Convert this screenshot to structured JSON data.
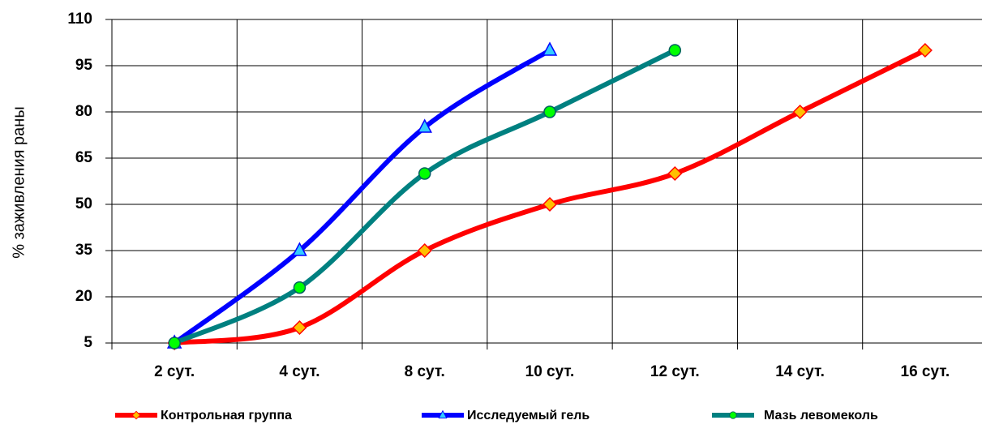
{
  "chart_data": {
    "type": "line",
    "y_label": "% заживления раны",
    "categories": [
      "2 сут.",
      "4 сут.",
      "8 сут.",
      "10 сут.",
      "12 сут.",
      "14 сут.",
      "16 сут."
    ],
    "series": [
      {
        "name": "Контрольная группа",
        "color": "#ff0000",
        "marker": "diamond",
        "marker_color": "#ffc000",
        "values": [
          5,
          10,
          35,
          50,
          60,
          80,
          100
        ]
      },
      {
        "name": "Исследуемый гель",
        "color": "#0000ff",
        "marker": "triangle",
        "marker_color": "#33ccff",
        "values": [
          5,
          35,
          75,
          100,
          null,
          null,
          null
        ]
      },
      {
        "name": "Мазь левомеколь",
        "color": "#008080",
        "marker": "circle",
        "marker_color": "#00ff00",
        "values": [
          5,
          23,
          60,
          80,
          100,
          null,
          null
        ]
      }
    ],
    "ylim": [
      5,
      110
    ],
    "yticks": [
      5,
      20,
      35,
      50,
      65,
      80,
      95,
      110
    ],
    "grid": true,
    "legend": "bottom"
  }
}
